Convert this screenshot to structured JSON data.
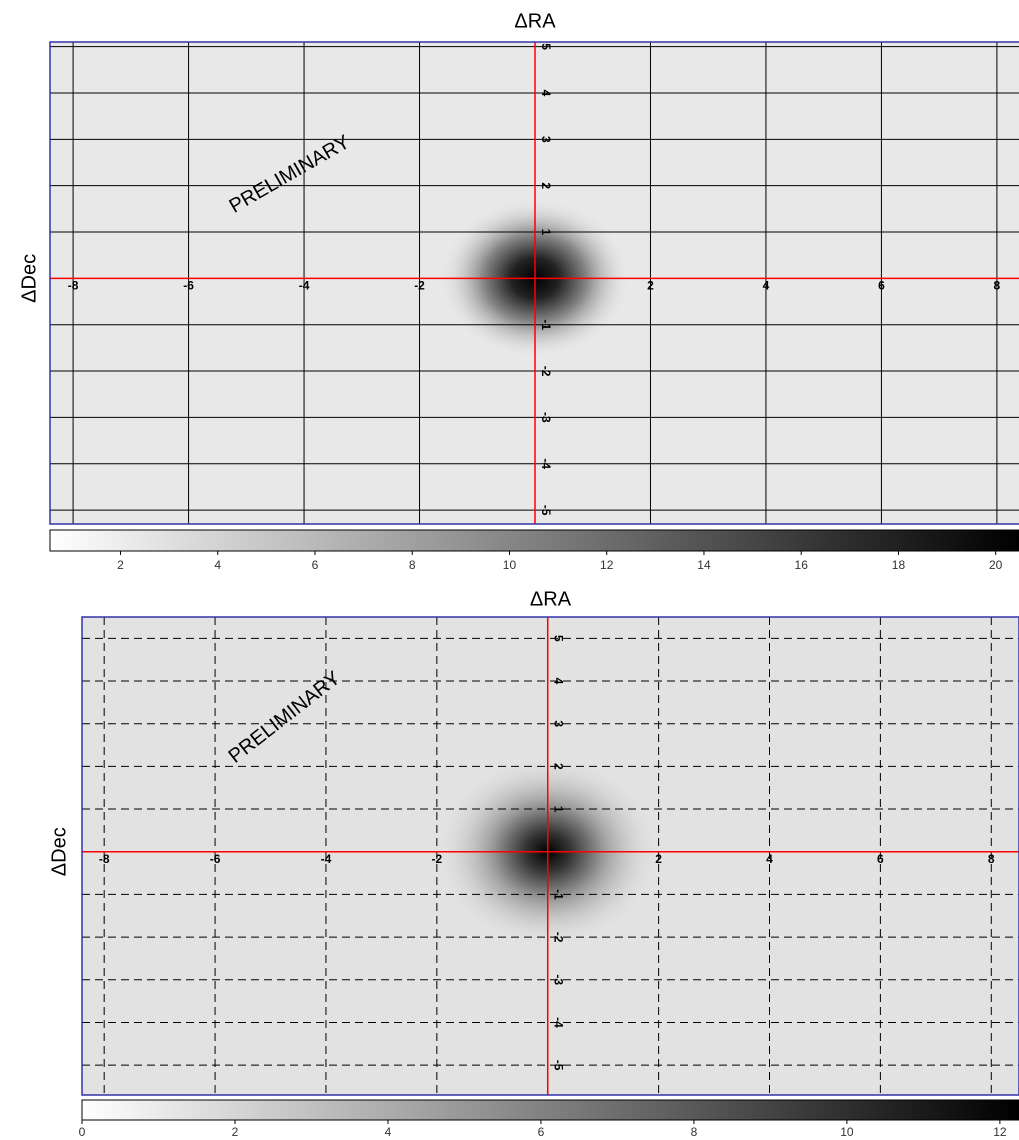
{
  "chart_data": [
    {
      "type": "heatmap",
      "title": "ΔRA",
      "ylabel": "ΔDec",
      "annotation": "PRELIMINARY",
      "xlim": [
        -8.4,
        8.4
      ],
      "ylim": [
        -5.3,
        5.1
      ],
      "xticks": [
        -8,
        -6,
        -4,
        -2,
        2,
        4,
        6,
        8
      ],
      "yticks": [
        -5,
        -4,
        -3,
        -2,
        -1,
        1,
        2,
        3,
        4,
        5
      ],
      "grid": "solid",
      "axis_color": "#ff0000",
      "colorbar": {
        "lim": [
          0.55,
          20.5
        ],
        "ticks": [
          2,
          4,
          6,
          8,
          10,
          12,
          14,
          16,
          18,
          20
        ]
      }
    },
    {
      "type": "heatmap",
      "title": "ΔRA",
      "ylabel": "ΔDec",
      "annotation": "PRELIMINARY",
      "xlim": [
        -8.4,
        8.5
      ],
      "ylim": [
        -5.7,
        5.5
      ],
      "xticks": [
        -8,
        -6,
        -4,
        -2,
        2,
        4,
        6,
        8
      ],
      "yticks": [
        -5,
        -4,
        -3,
        -2,
        -1,
        1,
        2,
        3,
        4,
        5
      ],
      "grid": "dashed",
      "axis_color": "#ff0000",
      "colorbar": {
        "lim": [
          0,
          12.25
        ],
        "ticks": [
          0,
          2,
          4,
          6,
          8,
          10,
          12
        ]
      }
    }
  ]
}
